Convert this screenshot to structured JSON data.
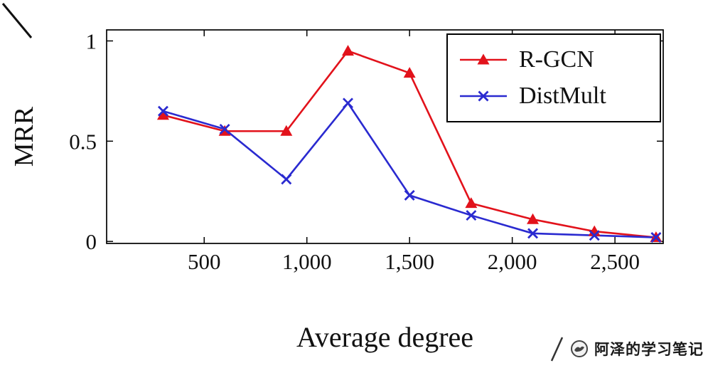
{
  "chart_data": {
    "type": "line",
    "title": "",
    "xlabel": "Average degree",
    "ylabel": "MRR",
    "x": [
      300,
      600,
      900,
      1200,
      1500,
      1800,
      2100,
      2400,
      2700
    ],
    "series": [
      {
        "name": "R-GCN",
        "color": "#e2121b",
        "marker": "triangle",
        "values": [
          0.63,
          0.55,
          0.55,
          0.95,
          0.84,
          0.19,
          0.11,
          0.05,
          0.02
        ]
      },
      {
        "name": "DistMult",
        "color": "#2a2ad0",
        "marker": "x",
        "values": [
          0.65,
          0.56,
          0.31,
          0.69,
          0.23,
          0.13,
          0.04,
          0.03,
          0.02
        ]
      }
    ],
    "xticks": {
      "values": [
        500,
        1000,
        1500,
        2000,
        2500
      ],
      "labels": [
        "500",
        "1,000",
        "1,500",
        "2,000",
        "2,500"
      ]
    },
    "yticks": {
      "values": [
        0,
        0.5,
        1
      ],
      "labels": [
        "0",
        "0.5",
        "1"
      ]
    },
    "xlim": [
      25,
      2735
    ],
    "ylim": [
      -0.01,
      1.055
    ],
    "grid": false,
    "legend_position": "top-right"
  },
  "watermark": {
    "text": "阿泽的学习笔记"
  }
}
